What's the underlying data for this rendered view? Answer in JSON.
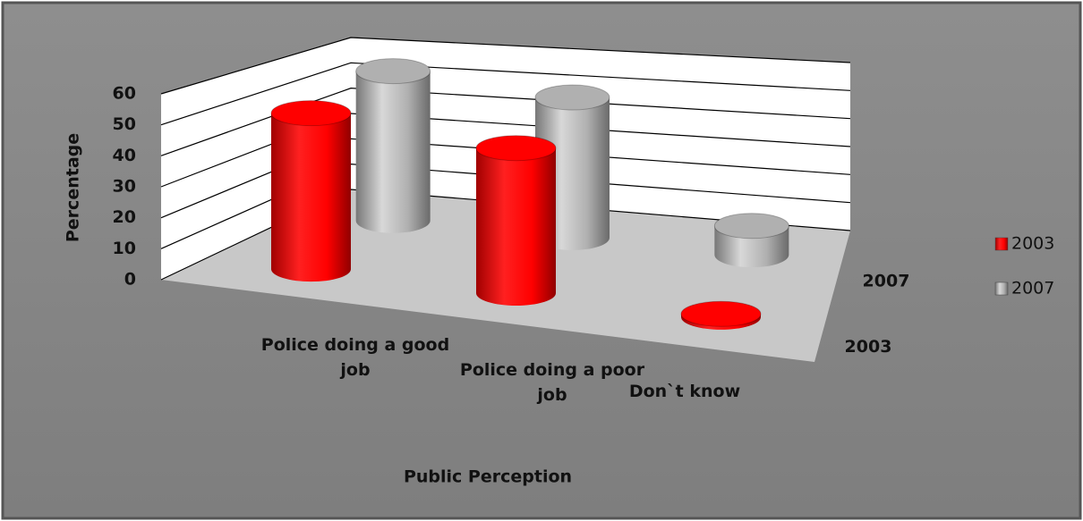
{
  "chart_data": {
    "type": "bar3d",
    "x_label": "Public Perception",
    "y_label": "Percentage",
    "categories": [
      "Police doing a good job",
      "Police doing a poor job",
      "Don`t know"
    ],
    "series": [
      {
        "name": "2003",
        "color": "#ff0000",
        "values": [
          52,
          47,
          1
        ]
      },
      {
        "name": "2007",
        "color": "#b0b0b0",
        "values": [
          55,
          50,
          10
        ]
      }
    ],
    "ylim": [
      0,
      60
    ],
    "yticks": [
      0,
      10,
      20,
      30,
      40,
      50,
      60
    ],
    "grid": true,
    "legend": "right"
  }
}
